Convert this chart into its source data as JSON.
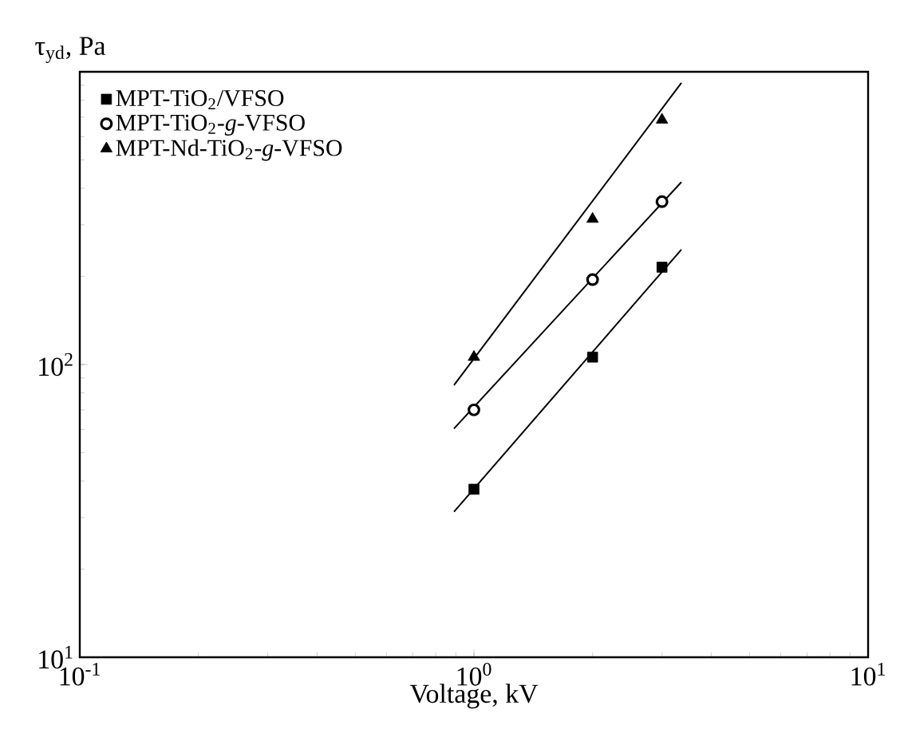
{
  "chart_data": {
    "type": "scatter",
    "xlabel": "Voltage, kV",
    "ylabel": "τ$_{yd}$, Pa",
    "log": "xy",
    "grid": false,
    "legend": "top left",
    "xlim": [
      0.1,
      10
    ],
    "ylim": [
      10,
      1000
    ],
    "xticks": [
      {
        "value": 0.1,
        "label": "10$^{-1}$"
      },
      {
        "value": 1,
        "label": "10$^{0}$"
      },
      {
        "value": 10,
        "label": "10$^{1}$"
      }
    ],
    "yticks": [
      {
        "value": 10,
        "label": "10$^{1}$"
      },
      {
        "value": 100,
        "label": "10$^{2}$"
      },
      {
        "value": 1000,
        "label": null
      }
    ],
    "series": [
      {
        "name": "MPT-TiO$_{2}$/VFSO",
        "color": "#000000",
        "marker": "square",
        "x": [
          1,
          2,
          3
        ],
        "values": [
          37.5,
          106,
          215
        ]
      },
      {
        "name": "MPT-TiO$_{2}$-*g*-VFSO",
        "color": "#000000",
        "marker": "circle",
        "x": [
          1,
          2,
          3
        ],
        "values": [
          70,
          195,
          360
        ]
      },
      {
        "name": "MPT-Nd-TiO$_{2}$-*g*-VFSO",
        "color": "#000000",
        "marker": "triangle",
        "x": [
          1,
          2,
          3
        ],
        "values": [
          106,
          314,
          685
        ]
      },
      {
        "type": "line",
        "color": "#000000",
        "marker": "none",
        "line_style": "solid",
        "x": [
          0.89,
          3.36
        ],
        "values": [
          31.4,
          247
        ]
      },
      {
        "type": "line",
        "color": "#000000",
        "marker": "none",
        "line_style": "solid",
        "x": [
          0.89,
          3.36
        ],
        "values": [
          60.4,
          420
        ]
      },
      {
        "type": "line",
        "color": "#000000",
        "marker": "none",
        "line_style": "solid",
        "x": [
          0.89,
          3.36
        ],
        "values": [
          85,
          916
        ]
      }
    ]
  }
}
